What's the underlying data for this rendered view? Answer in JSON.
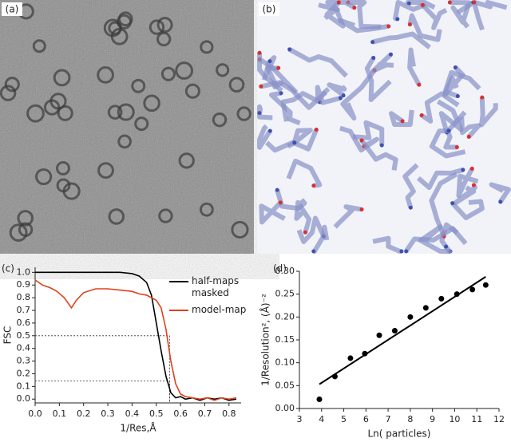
{
  "panels": {
    "a": "(a)",
    "b": "(b)"
  },
  "chart_data": [
    {
      "type": "line",
      "label": "(c)",
      "x_label": "1/Res,Å",
      "y_label": "FSC",
      "xlim": [
        0,
        0.85
      ],
      "ylim": [
        -0.03,
        1.04
      ],
      "xticks": [
        {
          "value": 0,
          "label": "0.0"
        },
        0.1,
        0.2,
        0.3,
        0.4,
        0.5,
        0.6,
        0.7,
        0.8
      ],
      "yticks": [
        {
          "value": 0,
          "label": "0.0"
        },
        0.1,
        0.2,
        0.3,
        0.4,
        0.5,
        0.6,
        0.7,
        0.8,
        0.9,
        {
          "value": 1,
          "label": "1.0"
        }
      ],
      "x": [
        0,
        0.03,
        0.06,
        0.09,
        0.12,
        0.15,
        0.17,
        0.2,
        0.25,
        0.3,
        0.35,
        0.4,
        0.43,
        0.46,
        0.48,
        0.5,
        0.52,
        0.54,
        0.56,
        0.58,
        0.6,
        0.62,
        0.65,
        0.68,
        0.71,
        0.74,
        0.77,
        0.8,
        0.83
      ],
      "series": [
        {
          "name": "half-maps masked",
          "color": "#000000",
          "values": [
            1,
            1,
            1,
            1,
            1,
            1,
            1,
            1,
            1,
            1,
            1,
            0.99,
            0.97,
            0.92,
            0.82,
            0.6,
            0.38,
            0.18,
            0.05,
            0.01,
            0.02,
            0,
            0.01,
            -0.01,
            0.01,
            0,
            0.01,
            -0.01,
            0
          ]
        },
        {
          "name": "model-map",
          "color": "#e0401a",
          "values": [
            0.94,
            0.9,
            0.88,
            0.85,
            0.8,
            0.72,
            0.78,
            0.84,
            0.87,
            0.87,
            0.86,
            0.85,
            0.83,
            0.82,
            0.8,
            0.78,
            0.72,
            0.55,
            0.3,
            0.12,
            0.04,
            0.02,
            0.01,
            0,
            0.01,
            -0.01,
            0.01,
            0,
            0.01
          ]
        }
      ],
      "guides": [
        {
          "x": 0.555,
          "y": 0.5
        },
        {
          "x": 0.555,
          "y": 0.143
        }
      ],
      "legend": "upper right"
    },
    {
      "type": "scatter",
      "label": "(d)",
      "x_label": "Ln( particles)",
      "y_label": "1/Resolution², (Å)⁻²",
      "xlim": [
        3,
        12
      ],
      "ylim": [
        0,
        0.3
      ],
      "xticks": [
        3,
        4,
        5,
        6,
        7,
        8,
        9,
        10,
        11,
        12
      ],
      "yticks": [
        {
          "value": 0,
          "label": "0.00"
        },
        0.05,
        {
          "value": 0.1,
          "label": "0.10"
        },
        0.15,
        {
          "value": 0.2,
          "label": "0.20"
        },
        0.25,
        {
          "value": 0.3,
          "label": "0.30"
        }
      ],
      "x": [
        3.9,
        4.6,
        5.3,
        5.95,
        6.6,
        7.3,
        8.0,
        8.7,
        9.4,
        10.1,
        10.8,
        11.4
      ],
      "values": [
        0.02,
        0.07,
        0.11,
        0.12,
        0.16,
        0.17,
        0.2,
        0.22,
        0.24,
        0.25,
        0.26,
        0.27
      ],
      "color": "#000000",
      "fit": {
        "x": [
          3.9,
          11.4
        ],
        "y": [
          0.053,
          0.288
        ]
      }
    }
  ]
}
